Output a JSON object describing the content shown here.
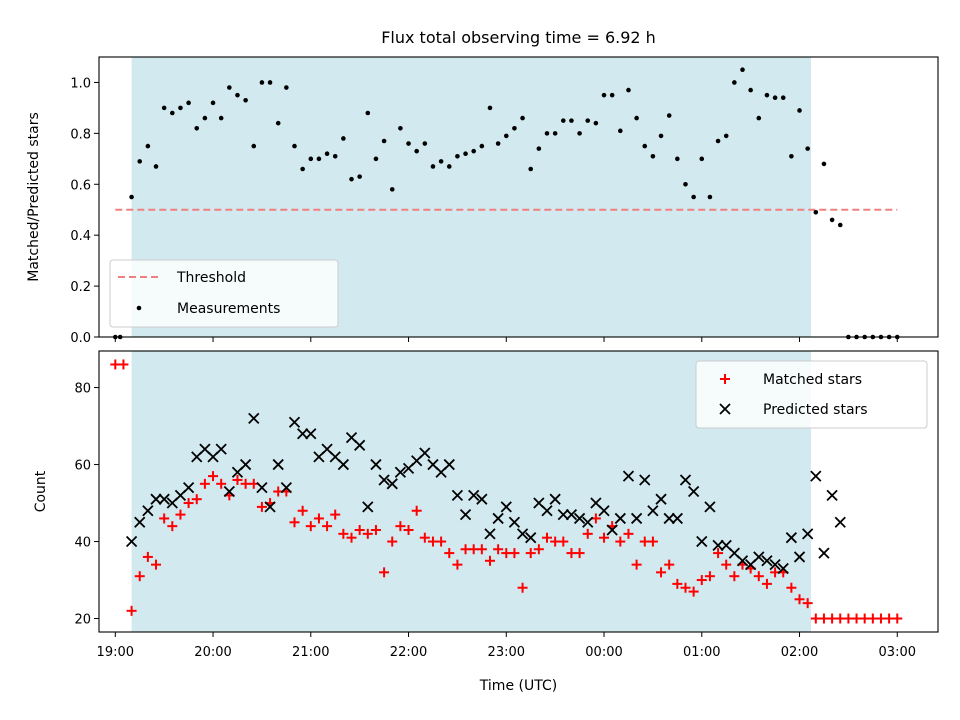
{
  "chart_data": [
    {
      "type": "scatter",
      "title": "Flux total observing time = 6.92 h",
      "ylabel": "Matched/Predicted stars",
      "xlabel": "",
      "xlim": [
        "18:50",
        "03:25"
      ],
      "ylim": [
        0,
        1.1
      ],
      "yticks": [
        "0.0",
        "0.2",
        "0.4",
        "0.6",
        "0.8",
        "1.0"
      ],
      "grid": false,
      "legend_position": "lower-left",
      "shaded_region": {
        "start": "19:10",
        "end": "02:07",
        "color": "#d2e9ef"
      },
      "threshold": {
        "name": "Threshold",
        "value": 0.5,
        "x_start": "19:00",
        "x_end": "03:00",
        "color": "#f08080",
        "style": "dashed"
      },
      "series": [
        {
          "name": "Measurements",
          "marker": "dot",
          "color": "#000000",
          "x": [
            "19:00",
            "19:03",
            "19:10",
            "19:15",
            "19:20",
            "19:25",
            "19:30",
            "19:35",
            "19:40",
            "19:45",
            "19:50",
            "19:55",
            "20:00",
            "20:05",
            "20:10",
            "20:15",
            "20:20",
            "20:25",
            "20:30",
            "20:35",
            "20:40",
            "20:45",
            "20:50",
            "20:55",
            "21:00",
            "21:05",
            "21:10",
            "21:15",
            "21:20",
            "21:25",
            "21:30",
            "21:35",
            "21:40",
            "21:45",
            "21:50",
            "21:55",
            "22:00",
            "22:05",
            "22:10",
            "22:15",
            "22:20",
            "22:25",
            "22:30",
            "22:35",
            "22:40",
            "22:45",
            "22:50",
            "22:55",
            "23:00",
            "23:05",
            "23:10",
            "23:15",
            "23:20",
            "23:25",
            "23:30",
            "23:35",
            "23:40",
            "23:45",
            "23:50",
            "23:55",
            "00:00",
            "00:05",
            "00:10",
            "00:15",
            "00:20",
            "00:25",
            "00:30",
            "00:35",
            "00:40",
            "00:45",
            "00:50",
            "00:55",
            "01:00",
            "01:05",
            "01:10",
            "01:15",
            "01:20",
            "01:25",
            "01:30",
            "01:35",
            "01:40",
            "01:45",
            "01:50",
            "01:55",
            "02:00",
            "02:05",
            "02:10",
            "02:15",
            "02:20",
            "02:25",
            "02:30",
            "02:35",
            "02:40",
            "02:45",
            "02:50",
            "02:55",
            "03:00"
          ],
          "y": [
            0.0,
            0.0,
            0.55,
            0.69,
            0.75,
            0.67,
            0.9,
            0.88,
            0.9,
            0.92,
            0.82,
            0.86,
            0.92,
            0.86,
            0.98,
            0.95,
            0.93,
            0.75,
            1.0,
            1.0,
            0.84,
            0.98,
            0.75,
            0.66,
            0.7,
            0.7,
            0.72,
            0.71,
            0.78,
            0.62,
            0.63,
            0.88,
            0.7,
            0.77,
            0.58,
            0.82,
            0.76,
            0.73,
            0.76,
            0.67,
            0.69,
            0.67,
            0.71,
            0.72,
            0.73,
            0.75,
            0.9,
            0.76,
            0.79,
            0.82,
            0.86,
            0.66,
            0.74,
            0.8,
            0.8,
            0.85,
            0.85,
            0.8,
            0.85,
            0.84,
            0.95,
            0.95,
            0.81,
            0.97,
            0.86,
            0.75,
            0.71,
            0.79,
            0.87,
            0.7,
            0.6,
            0.55,
            0.7,
            0.55,
            0.77,
            0.79,
            1.0,
            1.05,
            0.97,
            0.86,
            0.95,
            0.94,
            0.94,
            0.71,
            0.89,
            0.74,
            0.49,
            0.68,
            0.46,
            0.44,
            0.0,
            0.0,
            0.0,
            0.0,
            0.0,
            0.0,
            0.0
          ]
        }
      ]
    },
    {
      "type": "scatter",
      "title": "",
      "ylabel": "Count",
      "xlabel": "Time (UTC)",
      "xlim": [
        "18:50",
        "03:25"
      ],
      "ylim": [
        16.5,
        89.5
      ],
      "yticks": [
        "20",
        "40",
        "60",
        "80"
      ],
      "xticks": [
        "19:00",
        "20:00",
        "21:00",
        "22:00",
        "23:00",
        "00:00",
        "01:00",
        "02:00",
        "03:00"
      ],
      "grid": false,
      "legend_position": "upper-right",
      "shaded_region": {
        "start": "19:10",
        "end": "02:07",
        "color": "#d2e9ef"
      },
      "series": [
        {
          "name": "Matched stars",
          "marker": "plus",
          "color": "#ff0000",
          "x": [
            "19:00",
            "19:05",
            "19:10",
            "19:15",
            "19:20",
            "19:25",
            "19:30",
            "19:35",
            "19:40",
            "19:45",
            "19:50",
            "19:55",
            "20:00",
            "20:05",
            "20:10",
            "20:15",
            "20:20",
            "20:25",
            "20:30",
            "20:35",
            "20:40",
            "20:45",
            "20:50",
            "20:55",
            "21:00",
            "21:05",
            "21:10",
            "21:15",
            "21:20",
            "21:25",
            "21:30",
            "21:35",
            "21:40",
            "21:45",
            "21:50",
            "21:55",
            "22:00",
            "22:05",
            "22:10",
            "22:15",
            "22:20",
            "22:25",
            "22:30",
            "22:35",
            "22:40",
            "22:45",
            "22:50",
            "22:55",
            "23:00",
            "23:05",
            "23:10",
            "23:15",
            "23:20",
            "23:25",
            "23:30",
            "23:35",
            "23:40",
            "23:45",
            "23:50",
            "23:55",
            "00:00",
            "00:05",
            "00:10",
            "00:15",
            "00:20",
            "00:25",
            "00:30",
            "00:35",
            "00:40",
            "00:45",
            "00:50",
            "00:55",
            "01:00",
            "01:05",
            "01:10",
            "01:15",
            "01:20",
            "01:25",
            "01:30",
            "01:35",
            "01:40",
            "01:45",
            "01:50",
            "01:55",
            "02:00",
            "02:05",
            "02:10",
            "02:15",
            "02:20",
            "02:25",
            "02:30",
            "02:35",
            "02:40",
            "02:45",
            "02:50",
            "02:55",
            "03:00"
          ],
          "y": [
            86,
            86,
            22,
            31,
            36,
            34,
            46,
            44,
            47,
            50,
            51,
            55,
            57,
            55,
            52,
            56,
            55,
            55,
            49,
            50,
            53,
            53,
            45,
            48,
            44,
            46,
            44,
            47,
            42,
            41,
            43,
            42,
            43,
            32,
            40,
            44,
            43,
            48,
            41,
            40,
            40,
            37,
            34,
            38,
            38,
            38,
            35,
            38,
            37,
            37,
            28,
            37,
            38,
            41,
            40,
            40,
            37,
            37,
            42,
            46,
            41,
            44,
            40,
            42,
            34,
            40,
            40,
            32,
            34,
            29,
            28,
            27,
            30,
            31,
            37,
            34,
            31,
            34,
            33,
            31,
            29,
            32,
            32,
            28,
            25,
            24,
            20,
            20,
            20,
            20,
            20,
            20,
            20,
            20,
            20,
            20,
            20
          ]
        },
        {
          "name": "Predicted stars",
          "marker": "x",
          "color": "#000000",
          "x": [
            "19:10",
            "19:15",
            "19:20",
            "19:25",
            "19:30",
            "19:35",
            "19:40",
            "19:45",
            "19:50",
            "19:55",
            "20:00",
            "20:05",
            "20:10",
            "20:15",
            "20:20",
            "20:25",
            "20:30",
            "20:35",
            "20:40",
            "20:45",
            "20:50",
            "20:55",
            "21:00",
            "21:05",
            "21:10",
            "21:15",
            "21:20",
            "21:25",
            "21:30",
            "21:35",
            "21:40",
            "21:45",
            "21:50",
            "21:55",
            "22:00",
            "22:05",
            "22:10",
            "22:15",
            "22:20",
            "22:25",
            "22:30",
            "22:35",
            "22:40",
            "22:45",
            "22:50",
            "22:55",
            "23:00",
            "23:05",
            "23:10",
            "23:15",
            "23:20",
            "23:25",
            "23:30",
            "23:35",
            "23:40",
            "23:45",
            "23:50",
            "23:55",
            "00:00",
            "00:05",
            "00:10",
            "00:15",
            "00:20",
            "00:25",
            "00:30",
            "00:35",
            "00:40",
            "00:45",
            "00:50",
            "00:55",
            "01:00",
            "01:05",
            "01:10",
            "01:15",
            "01:20",
            "01:25",
            "01:30",
            "01:35",
            "01:40",
            "01:45",
            "01:50",
            "01:55",
            "02:00",
            "02:05",
            "02:10",
            "02:15",
            "02:20",
            "02:25"
          ],
          "y": [
            40,
            45,
            48,
            51,
            51,
            50,
            52,
            54,
            62,
            64,
            62,
            64,
            53,
            58,
            60,
            72,
            54,
            49,
            60,
            54,
            71,
            68,
            68,
            62,
            64,
            62,
            60,
            67,
            65,
            49,
            60,
            56,
            55,
            58,
            59,
            61,
            63,
            60,
            58,
            60,
            52,
            47,
            52,
            51,
            42,
            46,
            49,
            45,
            42,
            41,
            50,
            48,
            51,
            47,
            47,
            46,
            45,
            50,
            48,
            43,
            46,
            57,
            46,
            56,
            48,
            51,
            46,
            46,
            56,
            53,
            40,
            49,
            39,
            39,
            37,
            35,
            34,
            36,
            35,
            34,
            33,
            41,
            36,
            42,
            57,
            37,
            52,
            45
          ]
        }
      ]
    }
  ]
}
